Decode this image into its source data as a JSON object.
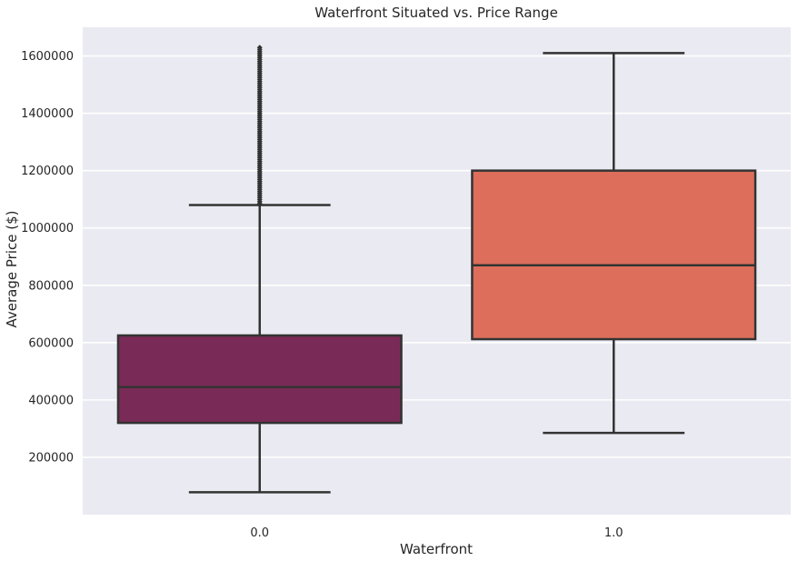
{
  "chart_data": {
    "type": "box",
    "title": "Waterfront Situated vs. Price Range",
    "xlabel": "Waterfront",
    "ylabel": "Average Price ($)",
    "ylim": [
      0,
      1700000
    ],
    "yticks": [
      200000,
      400000,
      600000,
      800000,
      1000000,
      1200000,
      1400000,
      1600000
    ],
    "grid": true,
    "categories": [
      "0.0",
      "1.0"
    ],
    "boxes": [
      {
        "category": "0.0",
        "whisker_low": 78000,
        "q1": 320000,
        "median": 445000,
        "q3": 625000,
        "whisker_high": 1080000,
        "outliers_from": 1085000,
        "outliers_to": 1630000,
        "color": "#7a2a56"
      },
      {
        "category": "1.0",
        "whisker_low": 285000,
        "q1": 612000,
        "median": 870000,
        "q3": 1200000,
        "whisker_high": 1610000,
        "color": "#dc6e5b"
      }
    ]
  },
  "colors": {
    "background": "#eaeaf2",
    "grid": "#ffffff",
    "line": "#333333"
  }
}
